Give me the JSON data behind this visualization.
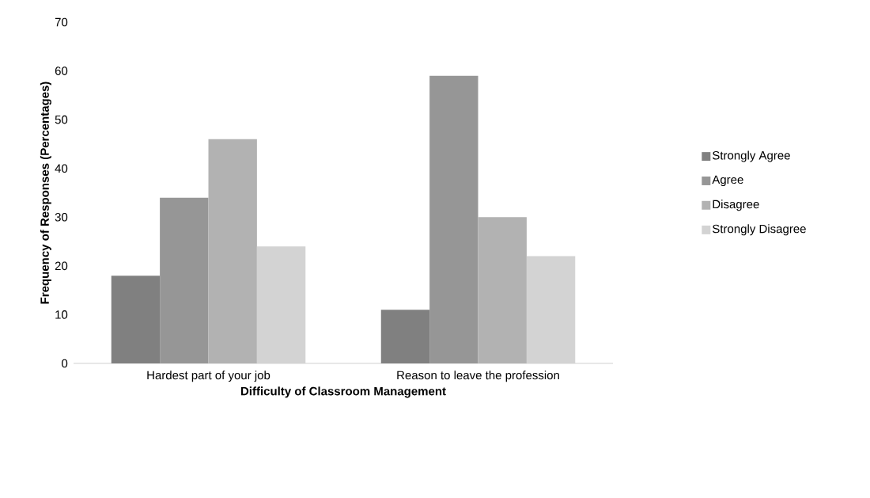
{
  "chart_data": {
    "type": "bar",
    "xlabel": "Difficulty of Classroom Management",
    "ylabel": "Frequency of Responses (Percentages)",
    "categories": [
      "Hardest part of your job",
      "Reason to leave the profession"
    ],
    "series": [
      {
        "name": "Strongly Agree",
        "color": "#808080",
        "values": [
          18,
          11
        ]
      },
      {
        "name": "Agree",
        "color": "#969696",
        "values": [
          34,
          59
        ]
      },
      {
        "name": "Disagree",
        "color": "#b2b2b2",
        "values": [
          46,
          30
        ]
      },
      {
        "name": "Strongly Disagree",
        "color": "#d3d3d3",
        "values": [
          24,
          22
        ]
      }
    ],
    "ylim": [
      0,
      70
    ],
    "yticks": [
      0,
      10,
      20,
      30,
      40,
      50,
      60,
      70
    ],
    "legend": "right"
  }
}
